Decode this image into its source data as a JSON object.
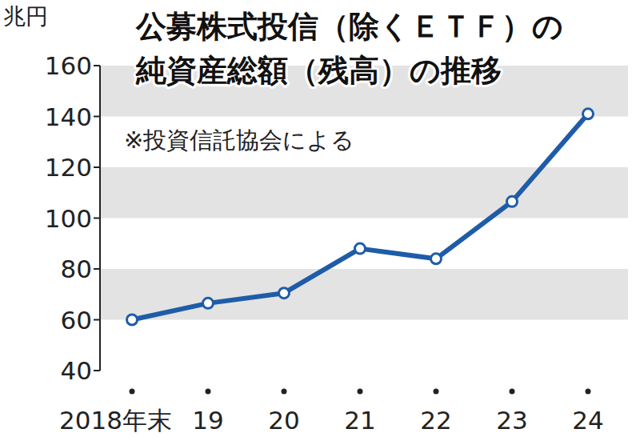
{
  "chart_data": {
    "type": "line",
    "title": "公募株式投信（除くＥＴＦ）の\n純資産総額（残高）の推移",
    "annotation": "※投資信託協会による",
    "ylabel": "兆円",
    "categories": [
      "2018年末",
      "19",
      "20",
      "21",
      "22",
      "23",
      "24"
    ],
    "values": [
      60,
      66.5,
      70.5,
      88,
      84,
      106.5,
      141
    ],
    "color": "#1f5ca8",
    "marker": "circle",
    "ylim": [
      40,
      160
    ],
    "yticks": [
      40,
      60,
      80,
      100,
      120,
      140,
      160
    ],
    "grid": true
  }
}
